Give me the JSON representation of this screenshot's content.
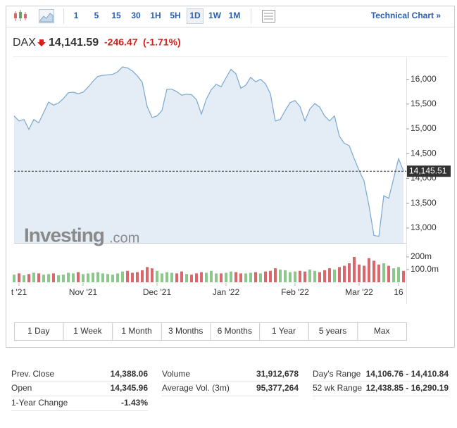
{
  "toolbar": {
    "intervals": [
      "1",
      "5",
      "15",
      "30",
      "1H",
      "5H",
      "1D",
      "1W",
      "1M"
    ],
    "active": "1D",
    "link": "Technical Chart »"
  },
  "quote": {
    "symbol": "DAX",
    "price": "14,141.59",
    "change": "-246.47",
    "change_pct": "(-1.71%)"
  },
  "watermark": {
    "brand": "Investing",
    "suffix": ".com"
  },
  "chart_data": {
    "type": "area",
    "categories": [
      null,
      "t '21",
      null,
      null,
      null,
      null,
      null,
      null,
      null,
      null,
      null,
      null,
      null,
      null,
      "Nov '21",
      null,
      null,
      null,
      null,
      null,
      null,
      null,
      null,
      null,
      null,
      null,
      null,
      null,
      null,
      "Dec '21",
      null,
      null,
      null,
      null,
      null,
      null,
      null,
      null,
      null,
      null,
      null,
      null,
      null,
      "Jan '22",
      null,
      null,
      null,
      null,
      null,
      null,
      null,
      null,
      null,
      null,
      null,
      null,
      null,
      "Feb '22",
      null,
      null,
      null,
      null,
      null,
      null,
      null,
      null,
      null,
      null,
      null,
      null,
      "Mar '22",
      null,
      null,
      null,
      null,
      null,
      null,
      null,
      "16",
      null
    ],
    "series": [
      {
        "color": "#7aa7d0",
        "fill": "#e4edf5",
        "values": [
          15260,
          15160,
          15190,
          14990,
          15190,
          15120,
          15330,
          15540,
          15480,
          15520,
          15610,
          15730,
          15740,
          15710,
          15740,
          15840,
          15960,
          16060,
          16080,
          16090,
          16100,
          16150,
          16250,
          16230,
          16170,
          16070,
          15940,
          15450,
          15230,
          15260,
          15370,
          15800,
          15800,
          15750,
          15680,
          15700,
          15690,
          15590,
          15300,
          15600,
          15790,
          15900,
          15850,
          16030,
          16200,
          16110,
          15820,
          15880,
          16040,
          15950,
          16000,
          15910,
          15710,
          15160,
          15190,
          15370,
          15530,
          15570,
          15450,
          15160,
          15400,
          15510,
          15440,
          15260,
          15160,
          15260,
          14850,
          14710,
          14660,
          14400,
          14160,
          13950,
          13450,
          12850,
          12830,
          13650,
          13600,
          14000,
          14400,
          14150
        ]
      }
    ],
    "ylim": [
      12700,
      16350
    ],
    "yticks": [
      {
        "value": 13000,
        "label": "13,000"
      },
      {
        "value": 13500,
        "label": "13,500"
      },
      {
        "value": 14000,
        "label": "14,000"
      },
      {
        "value": 14500,
        "label": "14,500"
      },
      {
        "value": 15000,
        "label": "15,000"
      },
      {
        "value": 15500,
        "label": "15,500"
      },
      {
        "value": 16000,
        "label": "16,000"
      }
    ],
    "last_price": {
      "value": 14145.51,
      "label": "14,145.51"
    },
    "volume": {
      "up_color": "#8cc78c",
      "down_color": "#d9676c",
      "values": [
        60,
        70,
        55,
        65,
        75,
        70,
        60,
        65,
        70,
        55,
        60,
        75,
        70,
        80,
        65,
        70,
        75,
        80,
        70,
        65,
        60,
        70,
        85,
        90,
        75,
        80,
        95,
        120,
        110,
        90,
        70,
        80,
        75,
        70,
        85,
        65,
        60,
        70,
        80,
        75,
        90,
        70,
        70,
        75,
        85,
        80,
        70,
        70,
        75,
        80,
        70,
        85,
        90,
        110,
        100,
        95,
        80,
        85,
        90,
        85,
        100,
        90,
        80,
        95,
        110,
        100,
        120,
        130,
        150,
        200,
        140,
        130,
        190,
        170,
        140,
        150,
        130,
        110,
        120,
        90
      ],
      "ylim": [
        0,
        255
      ],
      "yticks": [
        {
          "value": 100,
          "label": "100.0m"
        },
        {
          "value": 200,
          "label": "200m"
        }
      ]
    },
    "grid": false
  },
  "ranges": [
    "1 Day",
    "1 Week",
    "1 Month",
    "3 Months",
    "6 Months",
    "1 Year",
    "5 years",
    "Max"
  ],
  "stats": {
    "rows": [
      [
        {
          "label": "Prev. Close",
          "value": "14,388.06"
        },
        {
          "label": "Volume",
          "value": "31,912,678"
        },
        {
          "label": "Day's Range",
          "value": "14,106.76 - 14,410.84"
        }
      ],
      [
        {
          "label": "Open",
          "value": "14,345.96"
        },
        {
          "label": "Average Vol. (3m)",
          "value": "95,377,264"
        },
        {
          "label": "52 wk Range",
          "value": "12,438.85 - 16,290.19"
        }
      ],
      [
        {
          "label": "1-Year Change",
          "value": "-1.43%"
        }
      ]
    ]
  }
}
